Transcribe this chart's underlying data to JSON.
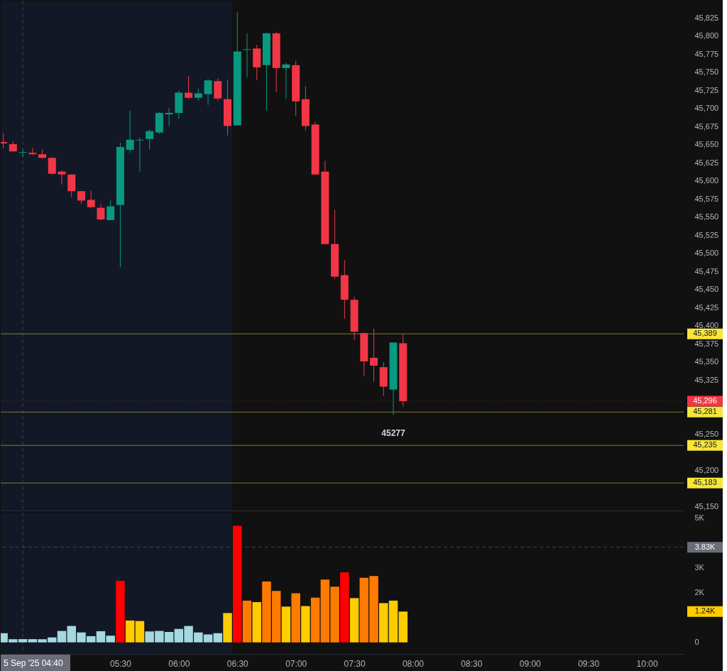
{
  "chart_data": [
    {
      "type": "candlestick",
      "x": [
        4.5,
        4.5833,
        4.6667,
        4.75,
        4.8333,
        4.9167,
        5,
        5.0833,
        5.1667,
        5.25,
        5.3333,
        5.4167,
        5.5,
        5.5833,
        5.6667,
        5.75,
        5.8333,
        5.9167,
        6,
        6.0833,
        6.1667,
        6.25,
        6.3333,
        6.4167,
        6.5,
        6.5833,
        6.6667,
        6.75,
        6.8333,
        6.9167,
        7,
        7.0833,
        7.1667,
        7.25,
        7.3333,
        7.4167,
        7.5,
        7.5833,
        7.6667,
        7.75,
        7.8333,
        7.9167
      ],
      "ohlc": [
        [
          45654,
          45666,
          45645,
          45652
        ],
        [
          45651,
          45655,
          45641,
          45641
        ],
        [
          45639,
          45644,
          45633,
          45640
        ],
        [
          45639,
          45646,
          45636,
          45637
        ],
        [
          45637,
          45644,
          45631,
          45632
        ],
        [
          45632,
          45633,
          45609,
          45610
        ],
        [
          45613,
          45615,
          45595,
          45609
        ],
        [
          45609,
          45609,
          45578,
          45586
        ],
        [
          45586,
          45586,
          45568,
          45573
        ],
        [
          45574,
          45587,
          45562,
          45564
        ],
        [
          45563,
          45568,
          45546,
          45547
        ],
        [
          45546,
          45574,
          45546,
          45565
        ],
        [
          45567,
          45653,
          45481,
          45647
        ],
        [
          45643,
          45697,
          45639,
          45657
        ],
        [
          45656,
          45660,
          45613,
          45657
        ],
        [
          45658,
          45671,
          45644,
          45669
        ],
        [
          45667,
          45695,
          45665,
          45694
        ],
        [
          45692,
          45701,
          45676,
          45694
        ],
        [
          45694,
          45725,
          45686,
          45722
        ],
        [
          45722,
          45745,
          45713,
          45715
        ],
        [
          45715,
          45728,
          45711,
          45721
        ],
        [
          45720,
          45741,
          45705,
          45739
        ],
        [
          45738,
          45742,
          45711,
          45714
        ],
        [
          45713,
          45740,
          45663,
          45676
        ],
        [
          45677,
          45833,
          45677,
          45779
        ],
        [
          45781,
          45804,
          45743,
          45782
        ],
        [
          45783,
          45788,
          45739,
          45757
        ],
        [
          45760,
          45805,
          45697,
          45804
        ],
        [
          45804,
          45806,
          45723,
          45756
        ],
        [
          45756,
          45763,
          45713,
          45761
        ],
        [
          45760,
          45766,
          45690,
          45710
        ],
        [
          45713,
          45731,
          45670,
          45676
        ],
        [
          45678,
          45682,
          45609,
          45609
        ],
        [
          45613,
          45628,
          45513,
          45513
        ],
        [
          45513,
          45560,
          45465,
          45468
        ],
        [
          45470,
          45491,
          45410,
          45436
        ],
        [
          45436,
          45440,
          45380,
          45392
        ],
        [
          45390,
          45391,
          45331,
          45351
        ],
        [
          45356,
          45396,
          45323,
          45345
        ],
        [
          45343,
          45350,
          45303,
          45316
        ],
        [
          45312,
          45377,
          45277,
          45377
        ],
        [
          45376,
          45389,
          45289,
          45296
        ]
      ],
      "colors": [
        "#f23645",
        "#f23645",
        "#089981",
        "#f23645",
        "#f23645",
        "#f23645",
        "#f23645",
        "#f23645",
        "#f23645",
        "#f23645",
        "#f23645",
        "#089981",
        "#089981",
        "#089981",
        "#089981",
        "#089981",
        "#089981",
        "#089981",
        "#089981",
        "#f23645",
        "#089981",
        "#089981",
        "#f23645",
        "#f23645",
        "#089981",
        "#089981",
        "#f23645",
        "#089981",
        "#f23645",
        "#089981",
        "#f23645",
        "#f23645",
        "#f23645",
        "#f23645",
        "#f23645",
        "#f23645",
        "#f23645",
        "#f23645",
        "#f23645",
        "#f23645",
        "#089981",
        "#f23645"
      ],
      "xlim": [
        4.478,
        10.315
      ],
      "ylim": [
        45145,
        45849
      ],
      "yticks": [
        {
          "value": 45150,
          "label": "45,150"
        },
        {
          "value": 45200,
          "label": "45,200"
        },
        {
          "value": 45250,
          "label": "45,250"
        },
        {
          "value": 45325,
          "label": "45,325"
        },
        {
          "value": 45350,
          "label": "45,350"
        },
        {
          "value": 45375,
          "label": "45,375"
        },
        {
          "value": 45400,
          "label": "45,400"
        },
        {
          "value": 45425,
          "label": "45,425"
        },
        {
          "value": 45450,
          "label": "45,450"
        },
        {
          "value": 45475,
          "label": "45,475"
        },
        {
          "value": 45500,
          "label": "45,500"
        },
        {
          "value": 45525,
          "label": "45,525"
        },
        {
          "value": 45550,
          "label": "45,550"
        },
        {
          "value": 45575,
          "label": "45,575"
        },
        {
          "value": 45600,
          "label": "45,600"
        },
        {
          "value": 45625,
          "label": "45,625"
        },
        {
          "value": 45650,
          "label": "45,650"
        },
        {
          "value": 45675,
          "label": "45,675"
        },
        {
          "value": 45700,
          "label": "45,700"
        },
        {
          "value": 45725,
          "label": "45,725"
        },
        {
          "value": 45750,
          "label": "45,750"
        },
        {
          "value": 45775,
          "label": "45,775"
        },
        {
          "value": 45800,
          "label": "45,800"
        },
        {
          "value": 45825,
          "label": "45,825"
        }
      ],
      "tick_labels": "y",
      "bands": [
        {
          "axis": "x",
          "from": 4.478,
          "to": 6.456,
          "color": "#131826"
        }
      ],
      "ref_lines": [
        {
          "axis": "y",
          "value": 45389,
          "label": "45,389",
          "color": "#f7e53b"
        },
        {
          "axis": "y",
          "value": 45296,
          "label": "45,296",
          "color": "#f23645",
          "line_style": "dotted"
        },
        {
          "axis": "y",
          "value": 45281,
          "label": "45,281",
          "color": "#f7e53b"
        },
        {
          "axis": "y",
          "value": 45235,
          "label": "45,235",
          "color": "#f7e53b"
        },
        {
          "axis": "y",
          "value": 45183,
          "label": "45,183",
          "color": "#f7e53b"
        },
        {
          "axis": "x",
          "value": 4.6667,
          "color": "#6a6d78",
          "line_style": "dashed"
        }
      ],
      "annotations": [
        {
          "text": "45277",
          "x": 7.8333,
          "y": 45277
        }
      ]
    },
    {
      "type": "bar",
      "x": [
        4.5,
        4.5833,
        4.6667,
        4.75,
        4.8333,
        4.9167,
        5,
        5.0833,
        5.1667,
        5.25,
        5.3333,
        5.4167,
        5.5,
        5.5833,
        5.6667,
        5.75,
        5.8333,
        5.9167,
        6,
        6.0833,
        6.1667,
        6.25,
        6.3333,
        6.4167,
        6.5,
        6.5833,
        6.6667,
        6.75,
        6.8333,
        6.9167,
        7,
        7.0833,
        7.1667,
        7.25,
        7.3333,
        7.4167,
        7.5,
        7.5833,
        7.6667,
        7.75,
        7.8333,
        7.9167
      ],
      "values": [
        370,
        130,
        130,
        130,
        130,
        200,
        460,
        660,
        400,
        250,
        450,
        270,
        2480,
        880,
        860,
        440,
        460,
        420,
        540,
        660,
        400,
        320,
        370,
        1180,
        4690,
        1680,
        1620,
        2450,
        2070,
        1440,
        1980,
        1460,
        1800,
        2530,
        2240,
        2820,
        1780,
        2600,
        2670,
        1580,
        1680,
        1240
      ],
      "colors": [
        "#a3d9df",
        "#a3d9df",
        "#a3d9df",
        "#a3d9df",
        "#a3d9df",
        "#a3d9df",
        "#a3d9df",
        "#a3d9df",
        "#a3d9df",
        "#a3d9df",
        "#a3d9df",
        "#a3d9df",
        "#ff0000",
        "#ffcc00",
        "#ffcc00",
        "#a3d9df",
        "#a3d9df",
        "#a3d9df",
        "#a3d9df",
        "#a3d9df",
        "#a3d9df",
        "#a3d9df",
        "#a3d9df",
        "#ffcc00",
        "#ff0000",
        "#ff7b00",
        "#ffcc00",
        "#ff7b00",
        "#ff7b00",
        "#ffcc00",
        "#ff7b00",
        "#ffcc00",
        "#ff7b00",
        "#ff7b00",
        "#ff7b00",
        "#ff0000",
        "#ffcc00",
        "#ff7b00",
        "#ff7b00",
        "#ffcc00",
        "#ffcc00",
        "#ffcc00"
      ],
      "xlim": [
        4.478,
        10.315
      ],
      "ylim": [
        -466,
        5220
      ],
      "xticks": [
        {
          "value": 5.5,
          "label": "05:30"
        },
        {
          "value": 6,
          "label": "06:00"
        },
        {
          "value": 6.5,
          "label": "06:30"
        },
        {
          "value": 7,
          "label": "07:00"
        },
        {
          "value": 7.5,
          "label": "07:30"
        },
        {
          "value": 8,
          "label": "08:00"
        },
        {
          "value": 8.5,
          "label": "08:30"
        },
        {
          "value": 9,
          "label": "09:00"
        },
        {
          "value": 9.5,
          "label": "09:30"
        },
        {
          "value": 10,
          "label": "10:00"
        }
      ],
      "yticks": [
        0,
        {
          "value": 2000,
          "label": "2K"
        },
        {
          "value": 3000,
          "label": "3K"
        },
        {
          "value": 5000,
          "label": "5K"
        }
      ],
      "bands": [
        {
          "axis": "x",
          "from": 4.478,
          "to": 6.456,
          "color": "#131826"
        }
      ],
      "ref_lines": [
        {
          "axis": "x",
          "value": 4.6667,
          "label": "5 Sep '25 04:40",
          "color": "#6a6d78",
          "line_style": "dashed"
        },
        {
          "axis": "y",
          "value": 3830,
          "label": "3.83K",
          "color": "#6a6d78",
          "line_style": "dashed"
        }
      ],
      "annotations": [
        "1.24K"
      ]
    }
  ]
}
